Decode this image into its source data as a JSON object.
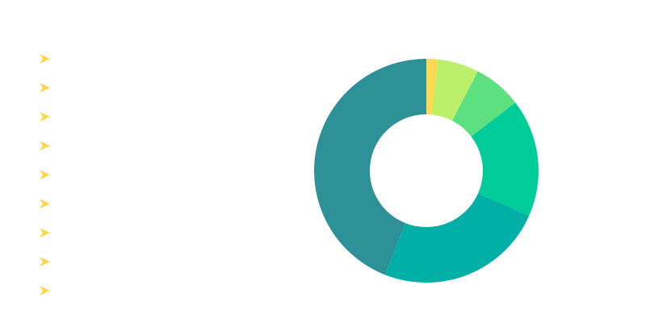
{
  "chart_data": {
    "type": "pie",
    "variant": "donut",
    "title": "",
    "series": [
      {
        "name": "",
        "value": 1.6,
        "color": "#fdd952"
      },
      {
        "name": "",
        "value": 6.0,
        "color": "#bdf06a"
      },
      {
        "name": "",
        "value": 7.0,
        "color": "#5ce080"
      },
      {
        "name": "",
        "value": 17.0,
        "color": "#00cc9a"
      },
      {
        "name": "",
        "value": 24.4,
        "color": "#00afa5"
      },
      {
        "name": "",
        "value": 44.0,
        "color": "#2e9198"
      }
    ],
    "legend": {
      "placement": "left",
      "icon": "arrow-right-icon",
      "icon_color": "#fcd64f",
      "item_count": 9
    }
  }
}
